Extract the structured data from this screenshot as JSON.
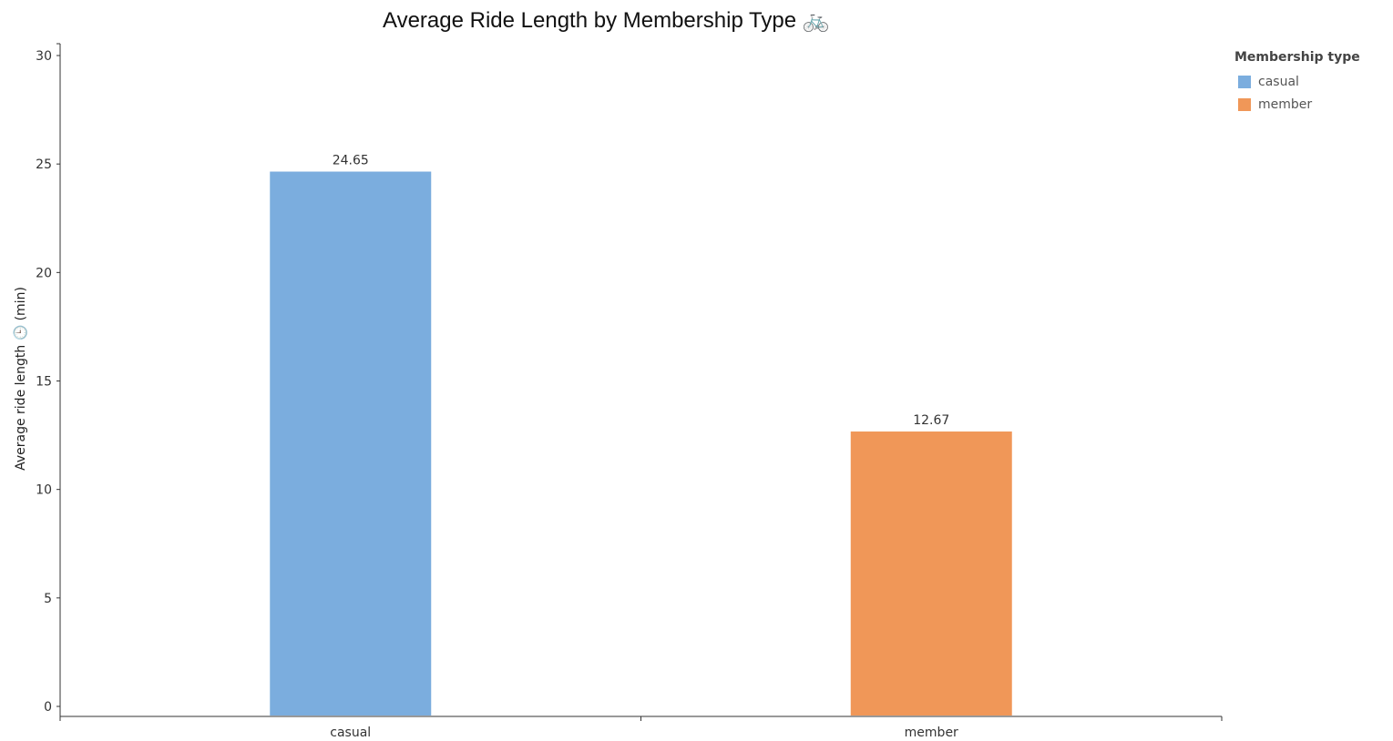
{
  "chart_data": {
    "type": "bar",
    "title": "Average Ride Length by Membership Type 🚲",
    "xlabel": "",
    "ylabel": "Average ride length 🕒 (min)",
    "categories": [
      "casual",
      "member"
    ],
    "values": [
      24.65,
      12.67
    ],
    "value_labels": [
      "24.65",
      "12.67"
    ],
    "colors": [
      "#7badde",
      "#f09758"
    ],
    "ylim": [
      0,
      30
    ],
    "yticks": [
      0,
      5,
      10,
      15,
      20,
      25,
      30
    ],
    "ytick_labels": [
      "0",
      "5",
      "10",
      "15",
      "20",
      "25",
      "30"
    ],
    "grid": false,
    "legend": {
      "title": "Membership type",
      "placement": "top-right",
      "entries": [
        {
          "label": "casual",
          "color": "#7badde"
        },
        {
          "label": "member",
          "color": "#f09758"
        }
      ]
    }
  }
}
